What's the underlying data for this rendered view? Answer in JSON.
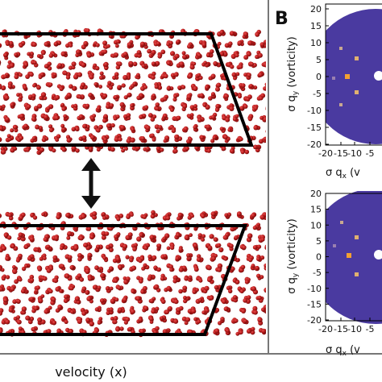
{
  "panel_b": {
    "label": "B",
    "yticks": [
      "20",
      "15",
      "10",
      "5",
      "0",
      "-5",
      "-10",
      "-15",
      "-20"
    ],
    "xticks": [
      "-20",
      "-15",
      "-10",
      "-5"
    ],
    "ylabel_prefix": "σ q",
    "ylabel_sub": "y",
    "ylabel_suffix": " (vorticity)",
    "xlabel_prefix": "σ q",
    "xlabel_sub": "x",
    "xlabel_suffix": " (v"
  },
  "panel_a": {
    "xlabel": "velocity (x)"
  },
  "colors": {
    "particle": "#b81c1c",
    "particle_dark": "#6e0909",
    "disk": "#4a3aa0",
    "bright_spot": "#f3a032",
    "frame": "#000000",
    "border": "#777777"
  }
}
